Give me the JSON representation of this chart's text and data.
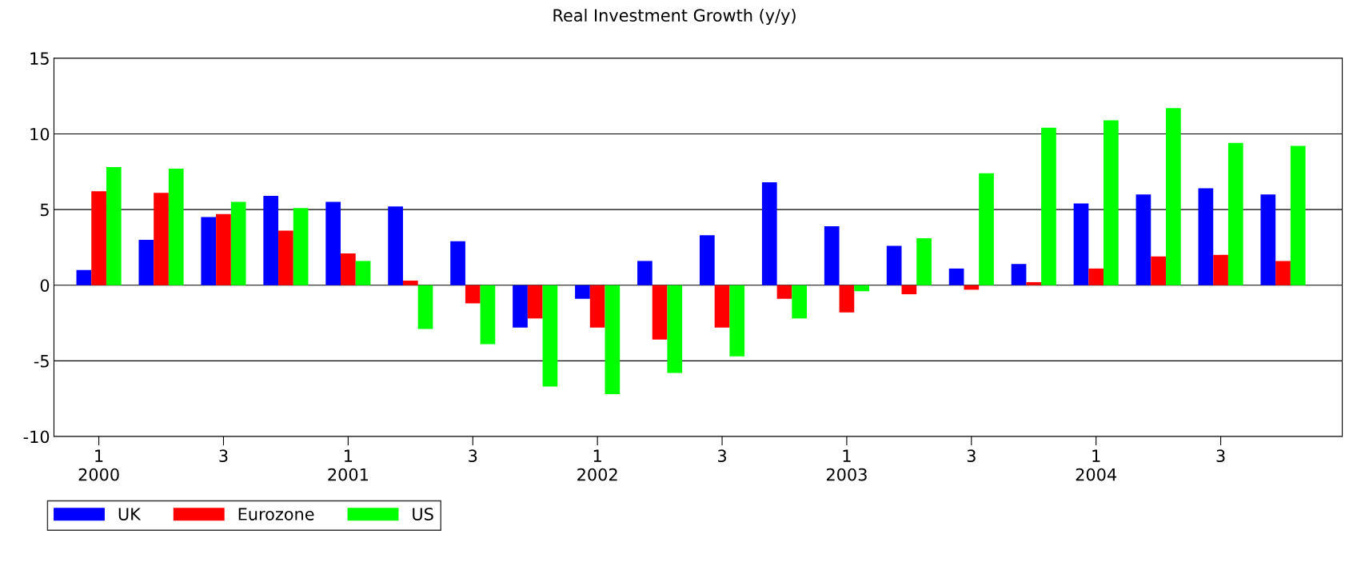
{
  "chart_data": {
    "type": "bar",
    "title": "Real Investment Growth (y/y)",
    "categories": [
      "1\n2000",
      null,
      "3",
      null,
      "1\n2001",
      null,
      "3",
      null,
      "1\n2002",
      null,
      "3",
      null,
      "1\n2003",
      null,
      "3",
      null,
      "1\n2004",
      null,
      "3",
      null
    ],
    "series": [
      {
        "name": "UK",
        "color": "#0000ff",
        "values": [
          1.0,
          3.0,
          4.5,
          5.9,
          5.5,
          5.2,
          2.9,
          -2.8,
          -0.9,
          1.6,
          3.3,
          6.8,
          3.9,
          2.6,
          1.1,
          1.4,
          5.4,
          6.0,
          6.4,
          6.0
        ]
      },
      {
        "name": "Eurozone",
        "color": "#ff0000",
        "values": [
          6.2,
          6.1,
          4.7,
          3.6,
          2.1,
          0.3,
          -1.2,
          -2.2,
          -2.8,
          -3.6,
          -2.8,
          -0.9,
          -1.8,
          -0.6,
          -0.3,
          0.2,
          1.1,
          1.9,
          2.0,
          1.6
        ]
      },
      {
        "name": "US",
        "color": "#00ff00",
        "values": [
          7.8,
          7.7,
          5.5,
          5.1,
          1.6,
          -2.9,
          -3.9,
          -6.7,
          -7.2,
          -5.8,
          -4.7,
          -2.2,
          -0.4,
          3.1,
          7.4,
          10.4,
          10.9,
          11.7,
          9.4,
          9.2
        ]
      }
    ],
    "ylim": [
      -10,
      15
    ],
    "yticks": [
      -10,
      -5,
      0,
      5,
      10,
      15
    ],
    "grid": "y",
    "legend": "bottom left"
  }
}
